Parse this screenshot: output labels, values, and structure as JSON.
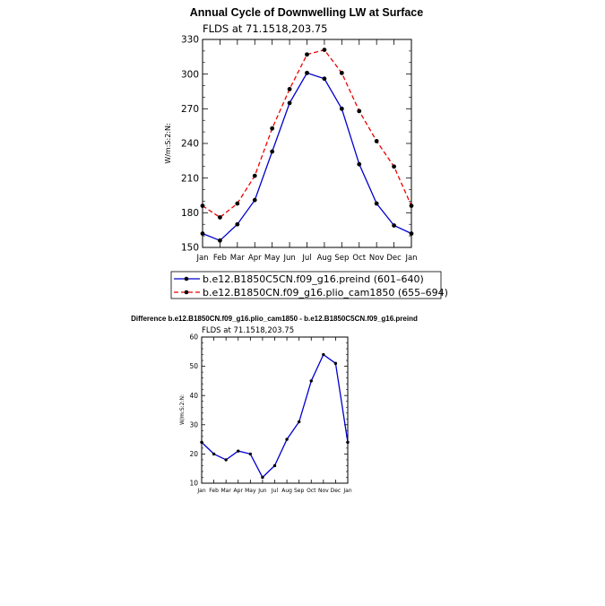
{
  "chart_data": [
    {
      "type": "line",
      "title": "Annual Cycle of Downwelling LW at Surface",
      "subtitle": "FLDS at 71.1518,203.75",
      "ylabel": "W/m:S:2:N:",
      "xlabel": "",
      "categories": [
        "Jan",
        "Feb",
        "Mar",
        "Apr",
        "May",
        "Jun",
        "Jul",
        "Aug",
        "Sep",
        "Oct",
        "Nov",
        "Dec",
        "Jan"
      ],
      "ylim": [
        150,
        330
      ],
      "yticks": [
        150,
        180,
        210,
        240,
        270,
        300,
        330
      ],
      "legend_position": "below",
      "series": [
        {
          "name": "b.e12.B1850C5CN.f09_g16.preind (601–640)",
          "color": "#0000cc",
          "dash": "solid",
          "values": [
            162,
            156,
            170,
            191,
            233,
            275,
            301,
            296,
            270,
            222,
            188,
            169,
            162
          ]
        },
        {
          "name": "b.e12.B1850CN.f09_g16.plio_cam1850 (655–694)",
          "color": "#ee0000",
          "dash": "dashed",
          "values": [
            186,
            176,
            188,
            212,
            253,
            287,
            317,
            321,
            301,
            268,
            242,
            220,
            186
          ]
        }
      ]
    },
    {
      "type": "line",
      "title": "Difference b.e12.B1850CN.f09_g16.plio_cam1850 - b.e12.B1850C5CN.f09_g16.preind",
      "subtitle": "FLDS at 71.1518,203.75",
      "ylabel": "W/m:S:2:N:",
      "xlabel": "",
      "categories": [
        "Jan",
        "Feb",
        "Mar",
        "Apr",
        "May",
        "Jun",
        "Jul",
        "Aug",
        "Sep",
        "Oct",
        "Nov",
        "Dec",
        "Jan"
      ],
      "ylim": [
        10,
        60
      ],
      "yticks": [
        10,
        20,
        30,
        40,
        50,
        60
      ],
      "series": [
        {
          "color": "#0000cc",
          "dash": "solid",
          "values": [
            24,
            20,
            18,
            21,
            20,
            12,
            16,
            25,
            31,
            45,
            54,
            51,
            24
          ]
        }
      ]
    }
  ]
}
